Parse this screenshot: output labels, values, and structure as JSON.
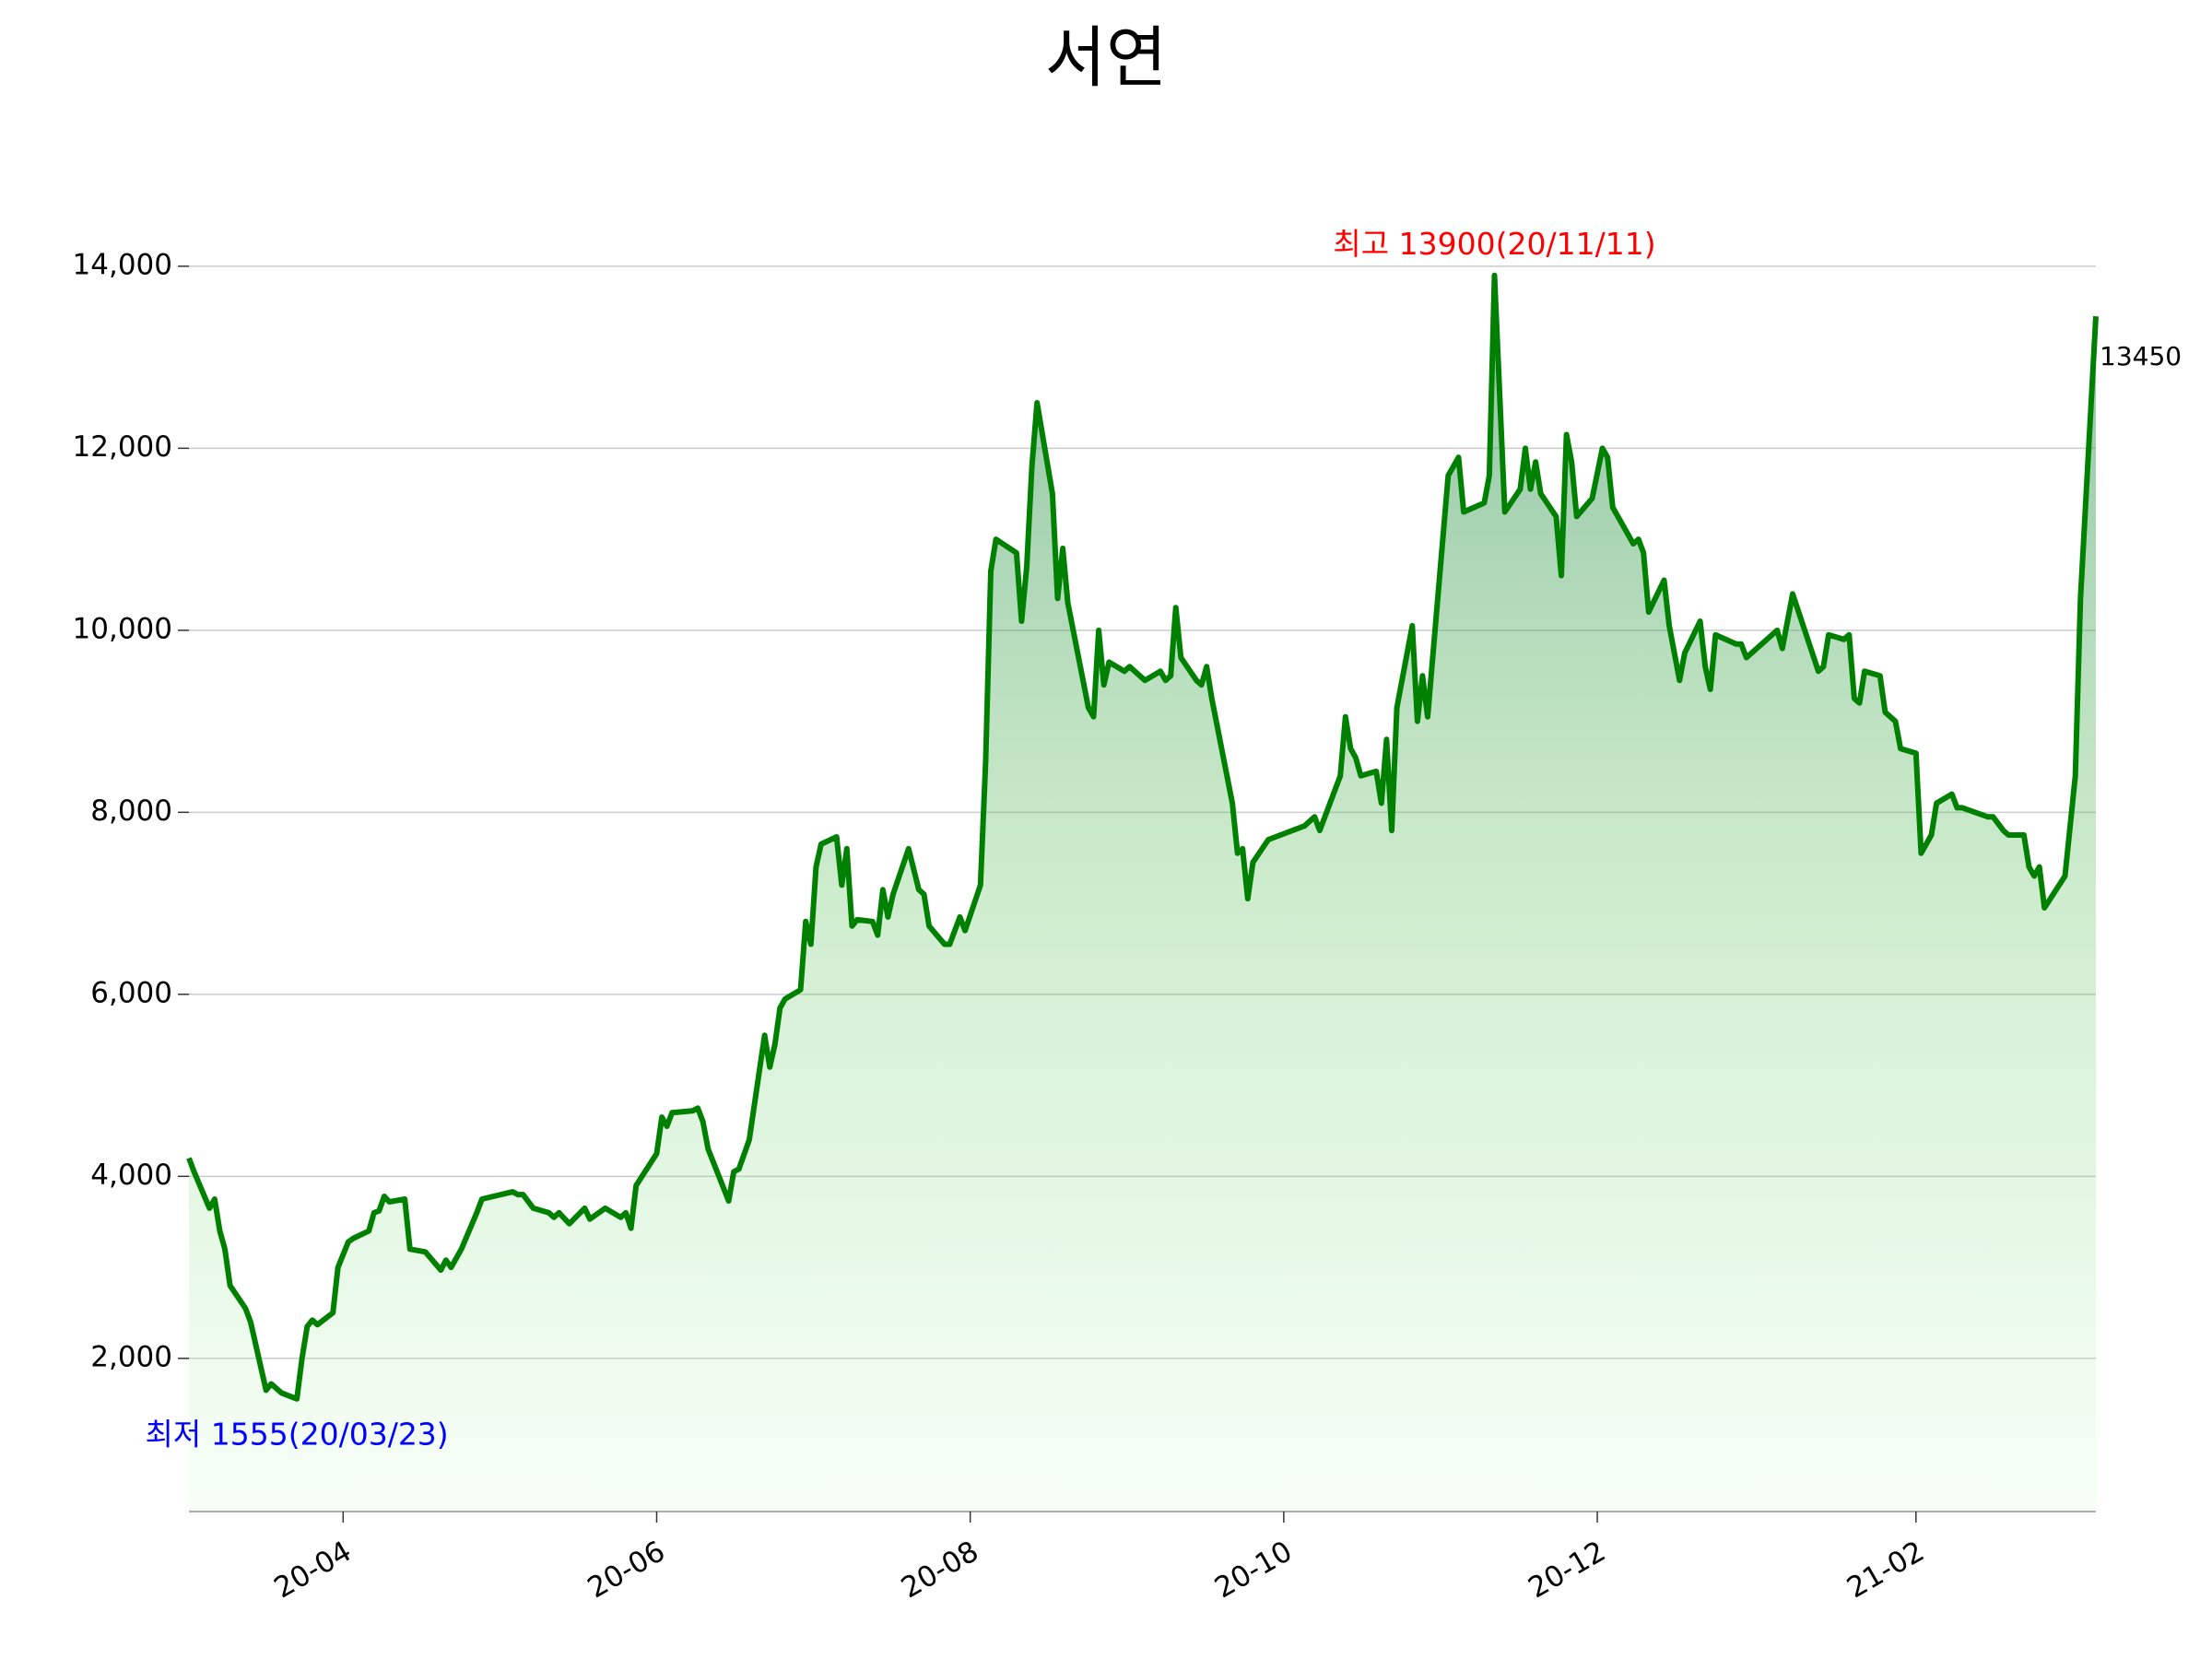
{
  "chart_data": {
    "type": "line",
    "title": "서연",
    "color": "#008000",
    "grid": true,
    "x": [
      "2020-03-02",
      "2020-03-03",
      "2020-03-06",
      "2020-03-07",
      "2020-03-08",
      "2020-03-09",
      "2020-03-10",
      "2020-03-13",
      "2020-03-14",
      "2020-03-17",
      "2020-03-18",
      "2020-03-20",
      "2020-03-23",
      "2020-03-24",
      "2020-03-25",
      "2020-03-26",
      "2020-03-27",
      "2020-03-30",
      "2020-03-31",
      "2020-04-02",
      "2020-04-03",
      "2020-04-06",
      "2020-04-07",
      "2020-04-08",
      "2020-04-09",
      "2020-04-10",
      "2020-04-13",
      "2020-04-14",
      "2020-04-17",
      "2020-04-20",
      "2020-04-21",
      "2020-04-22",
      "2020-04-24",
      "2020-04-27",
      "2020-04-28",
      "2020-05-04",
      "2020-05-05",
      "2020-05-06",
      "2020-05-08",
      "2020-05-11",
      "2020-05-12",
      "2020-05-13",
      "2020-05-15",
      "2020-05-18",
      "2020-05-19",
      "2020-05-22",
      "2020-05-25",
      "2020-05-26",
      "2020-05-27",
      "2020-05-28",
      "2020-06-01",
      "2020-06-02",
      "2020-06-03",
      "2020-06-04",
      "2020-06-08",
      "2020-06-09",
      "2020-06-10",
      "2020-06-11",
      "2020-06-15",
      "2020-06-16",
      "2020-06-17",
      "2020-06-19",
      "2020-06-22",
      "2020-06-23",
      "2020-06-24",
      "2020-06-25",
      "2020-06-26",
      "2020-06-29",
      "2020-06-30",
      "2020-07-01",
      "2020-07-02",
      "2020-07-03",
      "2020-07-06",
      "2020-07-07",
      "2020-07-08",
      "2020-07-09",
      "2020-07-10",
      "2020-07-13",
      "2020-07-14",
      "2020-07-15",
      "2020-07-16",
      "2020-07-17",
      "2020-07-20",
      "2020-07-22",
      "2020-07-23",
      "2020-07-24",
      "2020-07-27",
      "2020-07-28",
      "2020-07-30",
      "2020-07-31",
      "2020-08-03",
      "2020-08-04",
      "2020-08-05",
      "2020-08-06",
      "2020-08-10",
      "2020-08-11",
      "2020-08-12",
      "2020-08-13",
      "2020-08-14",
      "2020-08-17",
      "2020-08-18",
      "2020-08-19",
      "2020-08-20",
      "2020-08-24",
      "2020-08-25",
      "2020-08-26",
      "2020-08-27",
      "2020-08-28",
      "2020-08-31",
      "2020-09-01",
      "2020-09-04",
      "2020-09-07",
      "2020-09-08",
      "2020-09-09",
      "2020-09-10",
      "2020-09-11",
      "2020-09-14",
      "2020-09-15",
      "2020-09-16",
      "2020-09-17",
      "2020-09-21",
      "2020-09-22",
      "2020-09-23",
      "2020-09-24",
      "2020-09-25",
      "2020-09-28",
      "2020-10-05",
      "2020-10-07",
      "2020-10-08",
      "2020-10-12",
      "2020-10-13",
      "2020-10-14",
      "2020-10-15",
      "2020-10-16",
      "2020-10-19",
      "2020-10-20",
      "2020-10-21",
      "2020-10-22",
      "2020-10-23",
      "2020-10-26",
      "2020-10-27",
      "2020-10-28",
      "2020-10-29",
      "2020-11-02",
      "2020-11-03",
      "2020-11-04",
      "2020-11-05",
      "2020-11-09",
      "2020-11-10",
      "2020-11-11",
      "2020-11-13",
      "2020-11-16",
      "2020-11-17",
      "2020-11-18",
      "2020-11-19",
      "2020-11-20",
      "2020-11-23",
      "2020-11-24",
      "2020-11-25",
      "2020-11-26",
      "2020-11-27",
      "2020-11-30",
      "2020-12-02",
      "2020-12-03",
      "2020-12-04",
      "2020-12-08",
      "2020-12-09",
      "2020-12-10",
      "2020-12-11",
      "2020-12-14",
      "2020-12-15",
      "2020-12-17",
      "2020-12-18",
      "2020-12-21",
      "2020-12-22",
      "2020-12-23",
      "2020-12-24",
      "2020-12-28",
      "2020-12-29",
      "2020-12-30",
      "2021-01-05",
      "2021-01-06",
      "2021-01-08",
      "2021-01-13",
      "2021-01-14",
      "2021-01-15",
      "2021-01-18",
      "2021-01-19",
      "2021-01-20",
      "2021-01-21",
      "2021-01-22",
      "2021-01-25",
      "2021-01-26",
      "2021-01-28",
      "2021-01-29",
      "2021-02-01",
      "2021-02-02",
      "2021-02-04",
      "2021-02-05",
      "2021-02-08",
      "2021-02-09",
      "2021-02-10",
      "2021-02-15",
      "2021-02-16",
      "2021-02-18",
      "2021-02-19",
      "2021-02-22",
      "2021-02-23",
      "2021-02-24",
      "2021-02-25",
      "2021-02-26",
      "2021-03-02",
      "2021-03-04",
      "2021-03-05",
      "2021-03-08"
    ],
    "values": [
      4200,
      4050,
      3650,
      3750,
      3400,
      3200,
      2800,
      2550,
      2400,
      1650,
      1720,
      1620,
      1555,
      2000,
      2350,
      2420,
      2370,
      2500,
      3000,
      3280,
      3320,
      3400,
      3600,
      3620,
      3780,
      3720,
      3750,
      3200,
      3170,
      2970,
      3080,
      3000,
      3200,
      3600,
      3750,
      3830,
      3800,
      3800,
      3650,
      3600,
      3550,
      3600,
      3480,
      3650,
      3530,
      3650,
      3550,
      3600,
      3430,
      3900,
      4250,
      4650,
      4550,
      4700,
      4720,
      4750,
      4600,
      4300,
      3730,
      4050,
      4080,
      4400,
      5550,
      5200,
      5450,
      5850,
      5950,
      6050,
      6800,
      6550,
      7400,
      7650,
      7730,
      7200,
      7600,
      6750,
      6820,
      6800,
      6650,
      7150,
      6850,
      7100,
      7600,
      7150,
      7100,
      6750,
      6550,
      6550,
      6850,
      6700,
      7200,
      8550,
      10650,
      11000,
      10850,
      10100,
      10700,
      11800,
      12500,
      11500,
      10350,
      10900,
      10300,
      9150,
      9050,
      10000,
      9400,
      9650,
      9550,
      9600,
      9450,
      9550,
      9450,
      9500,
      10250,
      9700,
      9450,
      9400,
      9600,
      9250,
      8100,
      7550,
      7600,
      7050,
      7450,
      7700,
      7850,
      7950,
      7800,
      8400,
      9050,
      8700,
      8600,
      8400,
      8450,
      8100,
      8800,
      7800,
      9150,
      10050,
      9000,
      9500,
      9050,
      11700,
      11800,
      11900,
      11300,
      11400,
      11700,
      13900,
      11300,
      11550,
      12000,
      11550,
      11850,
      11500,
      11250,
      10600,
      12150,
      11850,
      11250,
      11450,
      12000,
      11900,
      11350,
      10950,
      11000,
      10850,
      10200,
      10550,
      10050,
      9450,
      9750,
      10100,
      9600,
      9350,
      9950,
      9850,
      9850,
      9700,
      10000,
      9800,
      10400,
      9550,
      9600,
      9950,
      9900,
      9950,
      9250,
      9200,
      9550,
      9500,
      9100,
      9000,
      8700,
      8650,
      7550,
      7750,
      8100,
      8200,
      8050,
      8050,
      7950,
      7950,
      7800,
      7750,
      7750,
      7400,
      7300,
      7400,
      6950,
      7300,
      8400,
      10350,
      13450
    ],
    "xlim": [
      "2020-03-02",
      "2021-03-08"
    ],
    "xticks": [
      {
        "value": "2020-04-01",
        "label": "20-04"
      },
      {
        "value": "2020-06-01",
        "label": "20-06"
      },
      {
        "value": "2020-08-01",
        "label": "20-08"
      },
      {
        "value": "2020-10-01",
        "label": "20-10"
      },
      {
        "value": "2020-12-01",
        "label": "20-12"
      },
      {
        "value": "2021-02-01",
        "label": "21-02"
      }
    ],
    "ylim": [
      317,
      14900
    ],
    "yticks": [
      {
        "value": 2000,
        "label": "2,000"
      },
      {
        "value": 4000,
        "label": "4,000"
      },
      {
        "value": 6000,
        "label": "6,000"
      },
      {
        "value": 8000,
        "label": "8,000"
      },
      {
        "value": 10000,
        "label": "10,000"
      },
      {
        "value": 12000,
        "label": "12,000"
      },
      {
        "value": 14000,
        "label": "14,000"
      }
    ],
    "annotations": [
      {
        "text": "최고 13900(20/11/11)",
        "color": "#ff0000"
      },
      {
        "text": "최저 1555(20/03/23)",
        "color": "#0000ff"
      }
    ]
  }
}
